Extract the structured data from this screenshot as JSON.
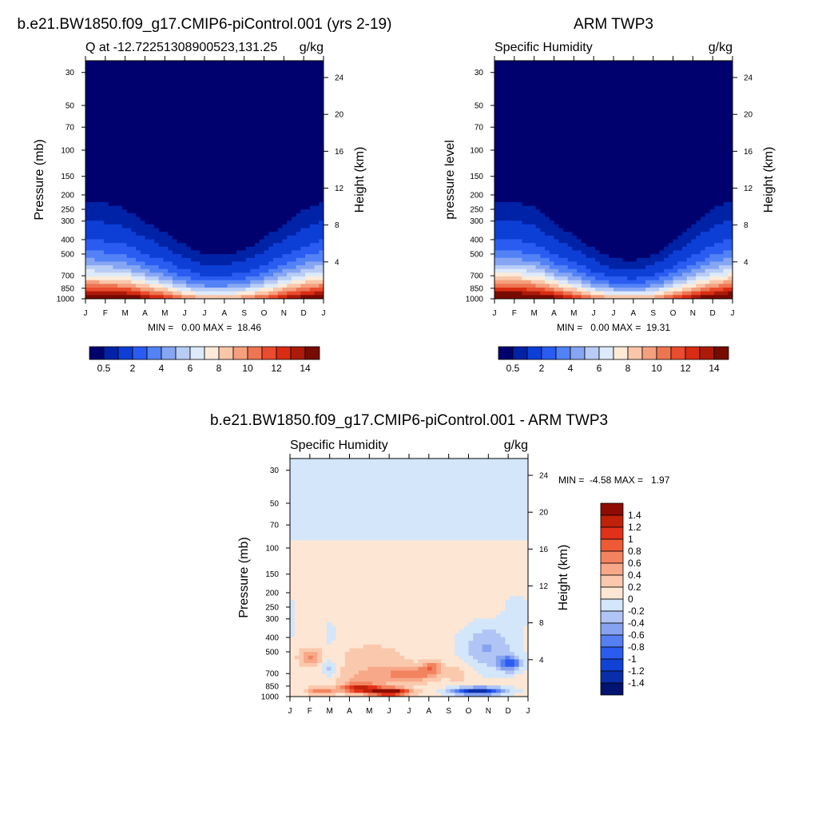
{
  "palettes": {
    "q": [
      "#00006e",
      "#0022a6",
      "#0d3fd6",
      "#2a5cf2",
      "#5282f6",
      "#86a6f4",
      "#b8ccf6",
      "#ddeafb",
      "#fdebd8",
      "#f9c6aa",
      "#f4a07e",
      "#ee7552",
      "#e94c2e",
      "#d82c13",
      "#ad1a08",
      "#780b00"
    ],
    "diff": [
      "#00136e",
      "#0a2eaa",
      "#1142d6",
      "#2b5cf0",
      "#5680f2",
      "#86a3f0",
      "#b0c5f5",
      "#d3e6fa",
      "#fde6d3",
      "#fac9ad",
      "#f7a889",
      "#f3835f",
      "#ee5a36",
      "#e2311a",
      "#c02109",
      "#8e0c00"
    ]
  },
  "charts": [
    {
      "id": "model",
      "main_title": "b.e21.BW1850.f09_g17.CMIP6-piControl.001 (yrs 2-19)",
      "left_title": "Q at -12.72251308900523,131.25",
      "right_title": "g/kg",
      "ylabel": "Pressure (mb)",
      "ylabel_right": "Height (km)",
      "x_labels": [
        "J",
        "F",
        "M",
        "A",
        "M",
        "J",
        "J",
        "A",
        "S",
        "O",
        "N",
        "D",
        "J"
      ],
      "pressure_ticks": [
        "30",
        "50",
        "70",
        "100",
        "150",
        "200",
        "250",
        "300",
        "400",
        "500",
        "700",
        "850",
        "1000"
      ],
      "pressure_values": [
        30,
        50,
        70,
        100,
        150,
        200,
        250,
        300,
        400,
        500,
        700,
        850,
        1000
      ],
      "height_ticks": [
        "24",
        "20",
        "16",
        "12",
        "8",
        "4"
      ],
      "height_values": [
        24,
        20,
        16,
        12,
        8,
        4
      ],
      "stats": "MIN =   0.00 MAX =  18.46",
      "levels": [
        0.5,
        1,
        2,
        3,
        4,
        5,
        6,
        7,
        8,
        9,
        10,
        11,
        12,
        13,
        14
      ],
      "colorbar_labels": [
        "0.5",
        "2",
        "4",
        "6",
        "8",
        "10",
        "12",
        "14"
      ],
      "colorbar_label_index": [
        0,
        2,
        4,
        6,
        8,
        10,
        12,
        14
      ],
      "palette": "q",
      "surface_q": [
        16.6,
        16.6,
        16.2,
        14.8,
        12.8,
        10.6,
        9.6,
        9.6,
        10.2,
        11.6,
        13.6,
        15.4,
        16.6
      ],
      "scale_height_km": [
        3.0,
        2.95,
        2.8,
        2.45,
        2.2,
        1.9,
        1.6,
        1.6,
        1.75,
        2.1,
        2.45,
        2.8,
        3.0
      ]
    },
    {
      "id": "obs",
      "main_title": "ARM TWP3",
      "left_title": "Specific Humidity",
      "right_title": "g/kg",
      "ylabel": "pressure level",
      "ylabel_right": "Height (km)",
      "x_labels": [
        "J",
        "F",
        "M",
        "A",
        "M",
        "J",
        "J",
        "A",
        "S",
        "O",
        "N",
        "D",
        "J"
      ],
      "pressure_ticks": [
        "30",
        "50",
        "70",
        "100",
        "150",
        "200",
        "250",
        "300",
        "400",
        "500",
        "700",
        "850",
        "1000"
      ],
      "pressure_values": [
        30,
        50,
        70,
        100,
        150,
        200,
        250,
        300,
        400,
        500,
        700,
        850,
        1000
      ],
      "height_ticks": [
        "24",
        "20",
        "16",
        "12",
        "8",
        "4"
      ],
      "height_values": [
        24,
        20,
        16,
        12,
        8,
        4
      ],
      "stats": "MIN =   0.00 MAX =  19.31",
      "levels": [
        0.5,
        1,
        2,
        3,
        4,
        5,
        6,
        7,
        8,
        9,
        10,
        11,
        12,
        13,
        14
      ],
      "colorbar_labels": [
        "0.5",
        "2",
        "4",
        "6",
        "8",
        "10",
        "12",
        "14"
      ],
      "colorbar_label_index": [
        0,
        2,
        4,
        6,
        8,
        10,
        12,
        14
      ],
      "palette": "q",
      "surface_q": [
        17.4,
        17.4,
        17.0,
        15.4,
        13.2,
        11.0,
        9.8,
        9.6,
        10.2,
        12.2,
        14.2,
        16.2,
        17.4
      ],
      "scale_height_km": [
        3.0,
        2.95,
        2.8,
        2.4,
        2.1,
        1.75,
        1.45,
        1.4,
        1.55,
        1.95,
        2.4,
        2.8,
        3.0
      ]
    },
    {
      "id": "diff",
      "main_title": "b.e21.BW1850.f09_g17.CMIP6-piControl.001 - ARM TWP3",
      "left_title": "Specific Humidity",
      "right_title": "g/kg",
      "ylabel": "Pressure (mb)",
      "ylabel_right": "Height (km)",
      "x_labels": [
        "J",
        "F",
        "M",
        "A",
        "M",
        "J",
        "J",
        "A",
        "S",
        "O",
        "N",
        "D",
        "J"
      ],
      "pressure_ticks": [
        "30",
        "50",
        "70",
        "100",
        "150",
        "200",
        "250",
        "300",
        "400",
        "500",
        "700",
        "850",
        "1000"
      ],
      "pressure_values": [
        30,
        50,
        70,
        100,
        150,
        200,
        250,
        300,
        400,
        500,
        700,
        850,
        1000
      ],
      "height_ticks": [
        "24",
        "20",
        "16",
        "12",
        "8",
        "4"
      ],
      "height_values": [
        24,
        20,
        16,
        12,
        8,
        4
      ],
      "stats": "MIN =  -4.58 MAX =   1.97",
      "levels": [
        -1.4,
        -1.2,
        -1,
        -0.8,
        -0.6,
        -0.4,
        -0.2,
        0,
        0.2,
        0.4,
        0.6,
        0.8,
        1,
        1.2,
        1.4
      ],
      "colorbar_labels": [
        "1.4",
        "1.2",
        "1",
        "0.8",
        "0.6",
        "0.4",
        "0.2",
        "0",
        "-0.2",
        "-0.4",
        "-0.6",
        "-0.8",
        "-1",
        "-1.2",
        "-1.4"
      ],
      "palette": "diff",
      "anomalies": [
        {
          "m": 1.0,
          "p": 540,
          "dm": 0.55,
          "dp": 0.13,
          "v": 0.55
        },
        {
          "m": 2.0,
          "p": 660,
          "dm": 0.35,
          "dp": 0.16,
          "v": -0.35
        },
        {
          "m": 2.0,
          "p": 380,
          "dm": 0.25,
          "dp": 0.18,
          "v": -0.25
        },
        {
          "m": 1.6,
          "p": 920,
          "dm": 0.65,
          "dp": 0.06,
          "v": 0.7
        },
        {
          "m": 3.5,
          "p": 880,
          "dm": 0.9,
          "dp": 0.07,
          "v": 1.15
        },
        {
          "m": 5.0,
          "p": 930,
          "dm": 1.0,
          "dp": 0.06,
          "v": 1.7
        },
        {
          "m": 6.3,
          "p": 700,
          "dm": 1.3,
          "dp": 0.12,
          "v": 0.65
        },
        {
          "m": 7.2,
          "p": 630,
          "dm": 0.5,
          "dp": 0.09,
          "v": 0.5
        },
        {
          "m": 4.2,
          "p": 560,
          "dm": 1.6,
          "dp": 0.22,
          "v": 0.3
        },
        {
          "m": 4.0,
          "p": 760,
          "dm": 1.6,
          "dp": 0.14,
          "v": 0.4
        },
        {
          "m": 10.0,
          "p": 470,
          "dm": 1.3,
          "dp": 0.35,
          "v": -0.5
        },
        {
          "m": 11.1,
          "p": 600,
          "dm": 0.55,
          "dp": 0.12,
          "v": -0.9
        },
        {
          "m": 9.5,
          "p": 920,
          "dm": 1.3,
          "dp": 0.06,
          "v": -1.45
        },
        {
          "m": 11.5,
          "p": 260,
          "dm": 0.7,
          "dp": 0.25,
          "v": -0.18
        },
        {
          "m": 0.0,
          "p": 300,
          "dm": 0.3,
          "dp": 0.3,
          "v": -0.25
        },
        {
          "m": 8.6,
          "p": 700,
          "dm": 0.6,
          "dp": 0.2,
          "v": 0.2
        }
      ]
    }
  ]
}
